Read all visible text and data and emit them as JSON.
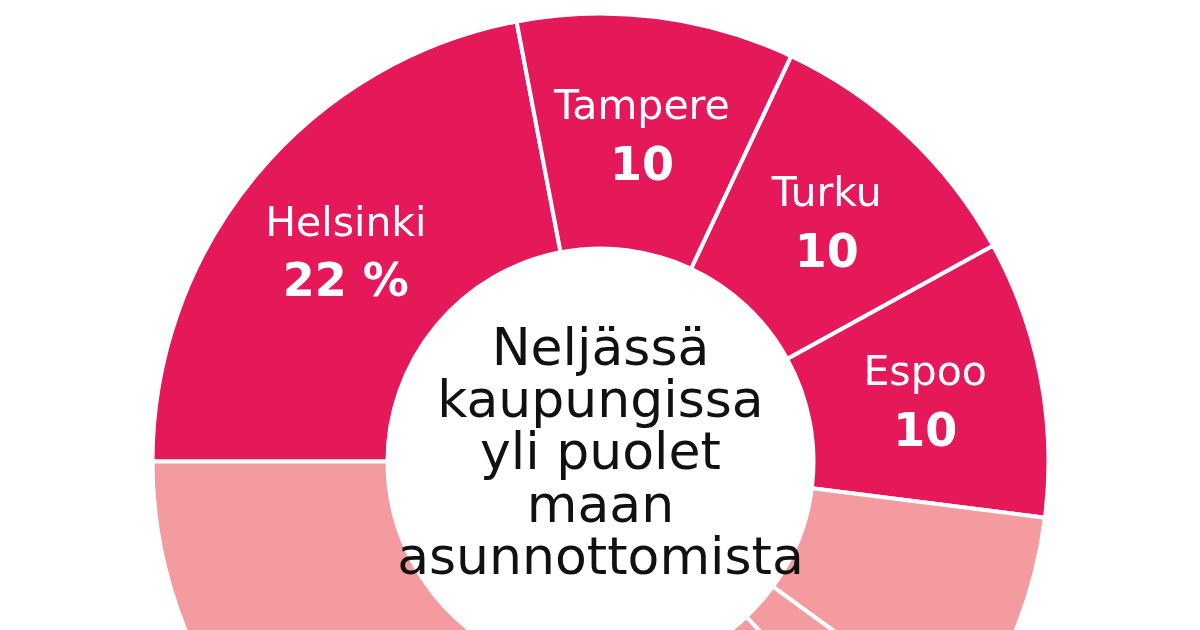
{
  "chart_data": {
    "type": "donut",
    "title": "Neljässä kaupungissa yli puolet maan asunnottomista",
    "categories": [
      "Helsinki",
      "Tampere",
      "Turku",
      "Espoo",
      null,
      null,
      null
    ],
    "values": [
      22,
      10,
      10,
      10,
      8,
      3,
      37
    ],
    "colors": [
      "#e5195a",
      "#e5195a",
      "#e5195a",
      "#e5195a",
      "#f39b9f",
      "#f39b9f",
      "#f39b9f"
    ],
    "value_labels": [
      "22 %",
      "10",
      "10",
      "10",
      null,
      null,
      null
    ]
  }
}
